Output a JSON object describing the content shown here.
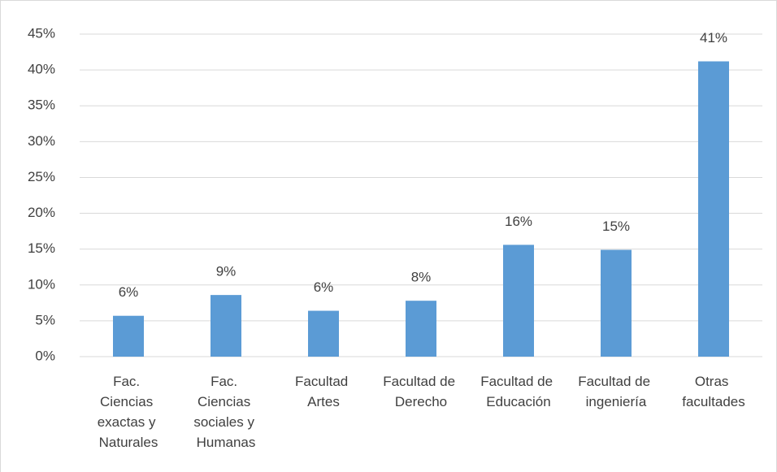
{
  "chart_data": {
    "type": "bar",
    "categories": [
      "Fac. Ciencias exactas y Naturales",
      "Fac. Ciencias sociales y Humanas",
      "Facultad Artes",
      "Facultad de Derecho",
      "Facultad de Educación",
      "Facultad de ingeniería",
      "Otras facultades"
    ],
    "values": [
      5.7,
      8.6,
      6.4,
      7.8,
      15.6,
      14.9,
      41.2
    ],
    "value_labels": [
      "6%",
      "9%",
      "6%",
      "8%",
      "16%",
      "15%",
      "41%"
    ],
    "color": "#5b9bd5",
    "ylim": [
      0,
      45
    ],
    "yticks": [
      {
        "value": 0,
        "label": "0%"
      },
      {
        "value": 5,
        "label": "5%"
      },
      {
        "value": 10,
        "label": "10%"
      },
      {
        "value": 15,
        "label": "15%"
      },
      {
        "value": 20,
        "label": "20%"
      },
      {
        "value": 25,
        "label": "25%"
      },
      {
        "value": 30,
        "label": "30%"
      },
      {
        "value": 35,
        "label": "35%"
      },
      {
        "value": 40,
        "label": "40%"
      },
      {
        "value": 45,
        "label": "45%"
      }
    ],
    "grid": true
  }
}
